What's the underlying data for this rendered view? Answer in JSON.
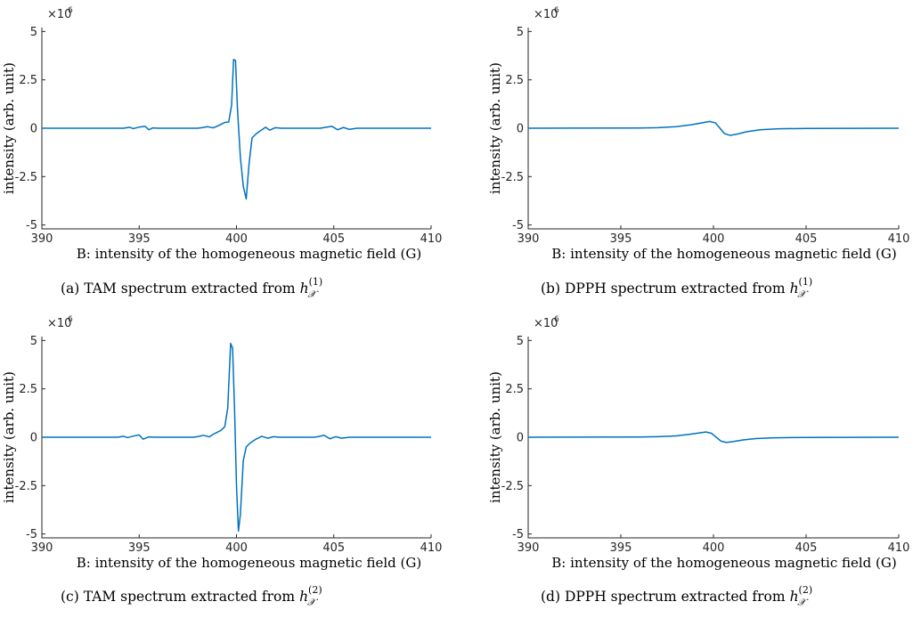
{
  "chart_data": [
    {
      "type": "line",
      "caption_label": "(a) TAM spectrum extracted from",
      "caption_symbol": "h",
      "caption_subscript": "𝒳",
      "caption_superscript": "(1)",
      "xlabel": "B: intensity of the homogeneous magnetic field (G)",
      "ylabel": "intensity (arb. unit)",
      "exponent_base": "×10",
      "exponent_power": "6",
      "xlim": [
        390,
        410
      ],
      "ylim": [
        -5.2,
        5.2
      ],
      "xticks": [
        390,
        395,
        400,
        405,
        410
      ],
      "xticklabels": [
        "390",
        "395",
        "400",
        "405",
        "410"
      ],
      "yticks": [
        5,
        2.5,
        0,
        -2.5,
        -5
      ],
      "yticklabels": [
        "5",
        "2.5",
        "0",
        "-2.5",
        "-5"
      ],
      "color": "#0072BD",
      "series": [
        {
          "x": [
            390,
            394.2,
            394.5,
            394.7,
            395.0,
            395.3,
            395.5,
            395.7,
            396.0,
            398.0,
            398.3,
            398.5,
            398.8,
            399.0,
            399.2,
            399.4,
            399.6,
            399.75,
            399.85,
            399.95,
            400.05,
            400.2,
            400.35,
            400.5,
            400.65,
            400.8,
            401.0,
            401.2,
            401.5,
            401.7,
            402.0,
            402.3,
            402.5,
            404.3,
            404.6,
            404.9,
            405.2,
            405.5,
            405.8,
            406.2,
            410
          ],
          "y": [
            0,
            0,
            0.05,
            -0.02,
            0.06,
            0.1,
            -0.08,
            0.02,
            0,
            0,
            0.04,
            0.08,
            0.02,
            0.1,
            0.2,
            0.3,
            0.32,
            1.2,
            3.55,
            3.5,
            1.0,
            -1.5,
            -3.0,
            -3.65,
            -1.8,
            -0.5,
            -0.3,
            -0.15,
            0.05,
            -0.1,
            0.03,
            0.0,
            0,
            0,
            0.05,
            0.1,
            -0.08,
            0.04,
            -0.06,
            0,
            0
          ]
        }
      ]
    },
    {
      "type": "line",
      "caption_label": "(b) DPPH spectrum extracted from",
      "caption_symbol": "h",
      "caption_subscript": "𝒳",
      "caption_superscript": "(1)",
      "xlabel": "B: intensity of the homogeneous magnetic field (G)",
      "ylabel": "intensity (arb. unit)",
      "exponent_base": "×10",
      "exponent_power": "6",
      "xlim": [
        390,
        410
      ],
      "ylim": [
        -5.2,
        5.2
      ],
      "xticks": [
        390,
        395,
        400,
        405,
        410
      ],
      "xticklabels": [
        "390",
        "395",
        "400",
        "405",
        "410"
      ],
      "yticks": [
        5,
        2.5,
        0,
        -2.5,
        -5
      ],
      "yticklabels": [
        "5",
        "2.5",
        "0",
        "-2.5",
        "-5"
      ],
      "color": "#0072BD",
      "series": [
        {
          "x": [
            390,
            396.0,
            397.0,
            398.0,
            398.8,
            399.4,
            399.8,
            400.1,
            400.35,
            400.6,
            400.9,
            401.3,
            401.8,
            402.5,
            403.5,
            405.0,
            410
          ],
          "y": [
            0,
            0.01,
            0.03,
            0.08,
            0.18,
            0.28,
            0.35,
            0.28,
            0.0,
            -0.28,
            -0.37,
            -0.3,
            -0.18,
            -0.08,
            -0.03,
            -0.01,
            0
          ]
        }
      ]
    },
    {
      "type": "line",
      "caption_label": "(c) TAM spectrum extracted from",
      "caption_symbol": "h",
      "caption_subscript": "𝒳",
      "caption_superscript": "(2)",
      "xlabel": "B: intensity of the homogeneous magnetic field (G)",
      "ylabel": "intensity (arb. unit)",
      "exponent_base": "×10",
      "exponent_power": "6",
      "xlim": [
        390,
        410
      ],
      "ylim": [
        -5.2,
        5.2
      ],
      "xticks": [
        390,
        395,
        400,
        405,
        410
      ],
      "xticklabels": [
        "390",
        "395",
        "400",
        "405",
        "410"
      ],
      "yticks": [
        5,
        2.5,
        0,
        -2.5,
        -5
      ],
      "yticklabels": [
        "5",
        "2.5",
        "0",
        "-2.5",
        "-5"
      ],
      "color": "#0072BD",
      "series": [
        {
          "x": [
            390,
            393.9,
            394.2,
            394.4,
            394.7,
            395.0,
            395.2,
            395.5,
            395.8,
            397.8,
            398.1,
            398.3,
            398.6,
            398.8,
            399.0,
            399.2,
            399.4,
            399.55,
            399.7,
            399.8,
            399.9,
            400.0,
            400.1,
            400.2,
            400.35,
            400.5,
            400.7,
            401.0,
            401.3,
            401.6,
            401.9,
            402.2,
            404.0,
            404.3,
            404.5,
            404.8,
            405.1,
            405.4,
            405.8,
            410
          ],
          "y": [
            0,
            0,
            0.05,
            -0.02,
            0.06,
            0.12,
            -0.1,
            0.02,
            0,
            0,
            0.05,
            0.1,
            0.02,
            0.15,
            0.25,
            0.35,
            0.55,
            1.5,
            4.85,
            4.6,
            1.5,
            -2.5,
            -4.85,
            -4.0,
            -1.2,
            -0.5,
            -0.3,
            -0.1,
            0.05,
            -0.05,
            0.03,
            0,
            0,
            0.05,
            0.1,
            -0.08,
            0.03,
            -0.05,
            0,
            0
          ]
        }
      ]
    },
    {
      "type": "line",
      "caption_label": "(d) DPPH spectrum extracted from",
      "caption_symbol": "h",
      "caption_subscript": "𝒳",
      "caption_superscript": "(2)",
      "xlabel": "B: intensity of the homogeneous magnetic field (G)",
      "ylabel": "intensity (arb. unit)",
      "exponent_base": "×10",
      "exponent_power": "6",
      "xlim": [
        390,
        410
      ],
      "ylim": [
        -5.2,
        5.2
      ],
      "xticks": [
        390,
        395,
        400,
        405,
        410
      ],
      "xticklabels": [
        "390",
        "395",
        "400",
        "405",
        "410"
      ],
      "yticks": [
        5,
        2.5,
        0,
        -2.5,
        -5
      ],
      "yticklabels": [
        "5",
        "2.5",
        "0",
        "-2.5",
        "-5"
      ],
      "color": "#0072BD",
      "series": [
        {
          "x": [
            390,
            396.0,
            397.0,
            398.0,
            398.7,
            399.2,
            399.6,
            399.9,
            400.15,
            400.4,
            400.7,
            401.1,
            401.6,
            402.3,
            403.3,
            405.0,
            410
          ],
          "y": [
            0,
            0.01,
            0.03,
            0.07,
            0.15,
            0.22,
            0.27,
            0.2,
            0.0,
            -0.2,
            -0.27,
            -0.22,
            -0.14,
            -0.07,
            -0.03,
            -0.01,
            0
          ]
        }
      ]
    }
  ]
}
